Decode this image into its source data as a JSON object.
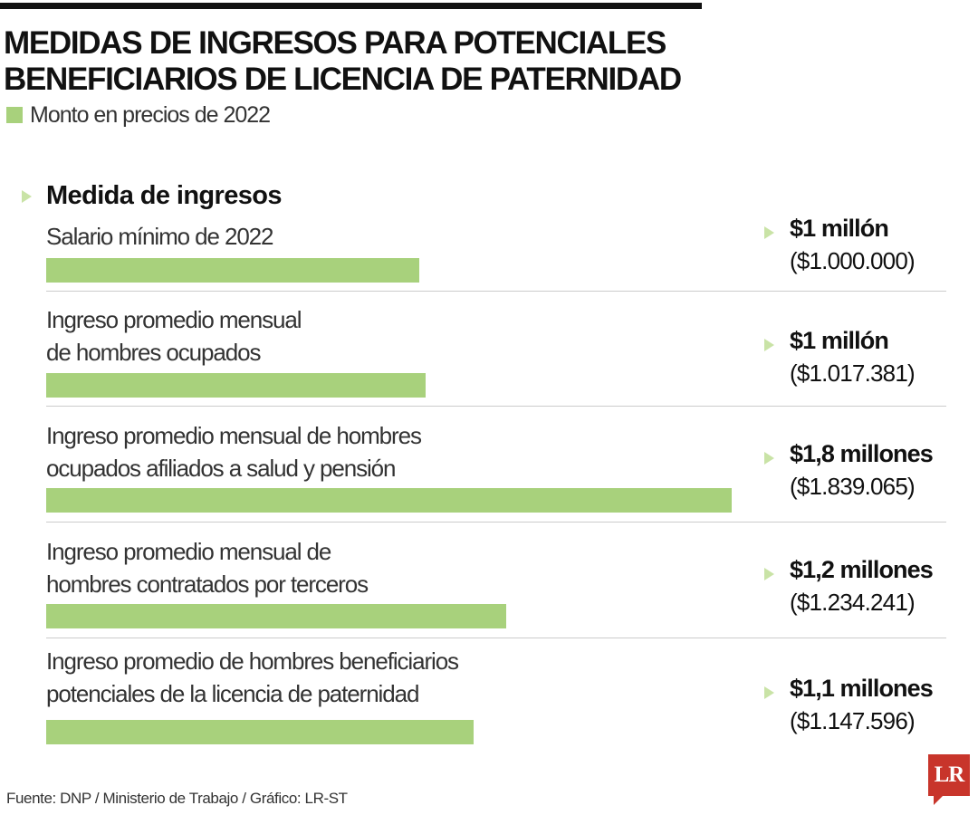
{
  "title_lines": [
    "MEDIDAS DE INGRESOS PARA POTENCIALES",
    "BENEFICIARIOS DE LICENCIA DE PATERNIDAD"
  ],
  "legend_label": "Monto en precios de 2022",
  "section_title": "Medida de ingresos",
  "source": "Fuente: DNP / Ministerio de Trabajo / Gráfico: LR-ST",
  "logo_text": "LR",
  "colors": {
    "bar": "#a8d17c",
    "arrow": "#c9e3a6",
    "logo": "#c8352b"
  },
  "icons": {
    "section_arrow": "triangle-right-icon",
    "value_arrow": "triangle-right-icon",
    "logo": "lr-logo-icon"
  },
  "chart_data": {
    "type": "bar",
    "orientation": "horizontal",
    "title": "MEDIDAS DE INGRESOS PARA POTENCIALES BENEFICIARIOS DE LICENCIA DE PATERNIDAD",
    "series": [
      {
        "name": "Monto en precios de 2022"
      }
    ],
    "categories": [
      "Salario mínimo de 2022",
      "Ingreso promedio mensual\nde hombres ocupados",
      "Ingreso promedio mensual de hombres\nocupados afiliados a salud y pensión",
      "Ingreso promedio mensual de\nhombres contratados por terceros",
      "Ingreso promedio de hombres beneficiarios\npotenciales de la licencia de paternidad"
    ],
    "values": [
      1000000,
      1017381,
      1839065,
      1234241,
      1147596
    ],
    "value_labels": [
      "$1 millón",
      "$1 millón",
      "$1,8 millones",
      "$1,2 millones",
      "$1,1 millones"
    ],
    "value_sublabels": [
      "($1.000.000)",
      "($1.017.381)",
      "($1.839.065)",
      "($1.234.241)",
      "($1.147.596)"
    ],
    "xlim": [
      0,
      2000000
    ],
    "grid": false,
    "legend": "top-left"
  }
}
